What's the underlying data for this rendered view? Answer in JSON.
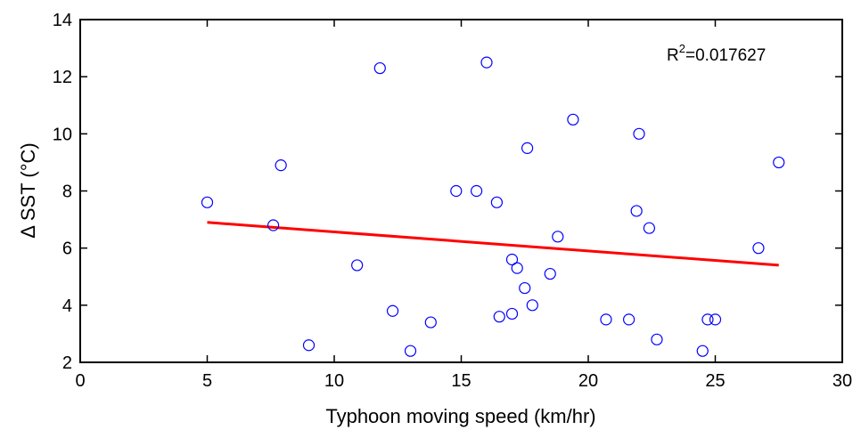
{
  "chart_data": {
    "type": "scatter",
    "xlabel": "Typhoon moving speed (km/hr)",
    "ylabel": "Δ SST (°C)",
    "xlim": [
      0,
      30
    ],
    "ylim": [
      2,
      14
    ],
    "xticks": [
      "0",
      "5",
      "10",
      "15",
      "20",
      "25",
      "30"
    ],
    "yticks": [
      "2",
      "4",
      "6",
      "8",
      "10",
      "12",
      "14"
    ],
    "grid": false,
    "annotation": {
      "base": "R",
      "sup": "2",
      "value": "=0.017627"
    },
    "series": [
      {
        "marker": "open-circle",
        "color": "#0000ff",
        "points": [
          [
            5.0,
            7.6
          ],
          [
            7.6,
            6.8
          ],
          [
            7.9,
            8.9
          ],
          [
            9.0,
            2.6
          ],
          [
            10.9,
            5.4
          ],
          [
            11.8,
            12.3
          ],
          [
            12.3,
            3.8
          ],
          [
            13.0,
            2.4
          ],
          [
            13.8,
            3.4
          ],
          [
            14.8,
            8.0
          ],
          [
            15.6,
            8.0
          ],
          [
            16.0,
            12.5
          ],
          [
            16.4,
            7.6
          ],
          [
            16.5,
            3.6
          ],
          [
            17.0,
            3.7
          ],
          [
            17.0,
            5.6
          ],
          [
            17.2,
            5.3
          ],
          [
            17.5,
            4.6
          ],
          [
            17.6,
            9.5
          ],
          [
            17.8,
            4.0
          ],
          [
            18.5,
            5.1
          ],
          [
            18.8,
            6.4
          ],
          [
            19.4,
            10.5
          ],
          [
            20.7,
            3.5
          ],
          [
            21.6,
            3.5
          ],
          [
            21.9,
            7.3
          ],
          [
            22.0,
            10.0
          ],
          [
            22.4,
            6.7
          ],
          [
            22.7,
            2.8
          ],
          [
            24.5,
            2.4
          ],
          [
            24.7,
            3.5
          ],
          [
            25.0,
            3.5
          ],
          [
            26.7,
            6.0
          ],
          [
            27.5,
            9.0
          ]
        ]
      }
    ],
    "fit_line": {
      "color": "#ff0000",
      "x": [
        5.0,
        27.5
      ],
      "y": [
        6.9,
        5.4
      ]
    }
  }
}
